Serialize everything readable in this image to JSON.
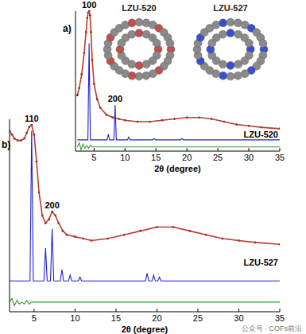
{
  "chart_data": [
    {
      "type": "line",
      "panel_label": "a)",
      "sample_label": "LZU-520",
      "x_label": "2θ (degree)",
      "xlim": [
        2,
        35
      ],
      "xticks": [
        5,
        10,
        15,
        20,
        25,
        30,
        35
      ],
      "ylim": [
        0,
        100
      ],
      "tick_labels": "x",
      "annotations": [
        {
          "text": "100",
          "x": 4.2,
          "y": 100
        },
        {
          "text": "200",
          "x": 8.4,
          "y": 33
        }
      ],
      "series": [
        {
          "color": "#000000",
          "marker": "circle",
          "line_style": "none",
          "x": [
            2.3,
            2.6,
            3.0,
            3.4,
            3.7,
            3.9,
            4.05,
            4.2,
            4.35,
            4.5,
            4.7,
            5.0,
            5.5,
            6,
            7,
            8,
            9,
            10,
            12,
            14,
            16,
            18,
            20,
            22,
            24,
            26,
            28,
            30,
            32,
            35
          ],
          "values": [
            40,
            45,
            55,
            70,
            85,
            95,
            99,
            100,
            97,
            85,
            65,
            48,
            37,
            31,
            26,
            24,
            23,
            22,
            21,
            21,
            22,
            23,
            24,
            24,
            23,
            21,
            19,
            18,
            17,
            16
          ]
        },
        {
          "color": "#c0392b",
          "line_style": "solid",
          "x": [
            2.3,
            2.6,
            3.0,
            3.4,
            3.7,
            3.9,
            4.05,
            4.2,
            4.35,
            4.5,
            4.7,
            5.0,
            5.5,
            6,
            7,
            8,
            9,
            10,
            12,
            14,
            16,
            18,
            20,
            22,
            24,
            26,
            28,
            30,
            32,
            35
          ],
          "values": [
            40,
            45,
            55,
            70,
            85,
            95,
            99,
            100,
            97,
            85,
            65,
            48,
            37,
            31,
            26,
            24,
            23,
            22,
            21,
            21,
            22,
            23,
            24,
            24,
            23,
            21,
            19,
            18,
            17,
            16
          ]
        },
        {
          "color": "#1f1fd6",
          "line_style": "solid",
          "x": [
            2.3,
            4.0,
            4.2,
            4.4,
            7.1,
            7.3,
            7.5,
            8.2,
            8.4,
            8.6,
            10.4,
            10.6,
            10.8,
            14.5,
            14.7,
            14.9,
            19.0,
            19.2,
            19.4,
            35
          ],
          "values": [
            8,
            8,
            77,
            8,
            8,
            12,
            8,
            8,
            33,
            8,
            8,
            10,
            8,
            8,
            9,
            8,
            8,
            9,
            8,
            8
          ]
        },
        {
          "color": "#2e9e2e",
          "line_style": "solid",
          "x": [
            2.3,
            2.6,
            2.9,
            3.2,
            3.5,
            3.8,
            4.1,
            4.4,
            4.7,
            5.0,
            5.5,
            6,
            8,
            35
          ],
          "values": [
            3,
            6,
            1,
            5,
            2,
            4,
            2,
            4,
            3,
            3,
            3,
            3,
            3,
            3
          ]
        }
      ]
    },
    {
      "type": "line",
      "panel_label": "b)",
      "sample_label": "LZU-527",
      "x_label": "2θ (degree)",
      "xlim": [
        2,
        35
      ],
      "xticks": [
        5,
        10,
        15,
        20,
        25,
        30,
        35
      ],
      "ylim": [
        0,
        100
      ],
      "tick_labels": "x",
      "annotations": [
        {
          "text": "110",
          "x": 4.7,
          "y": 97
        },
        {
          "text": "200",
          "x": 7.2,
          "y": 52
        }
      ],
      "series": [
        {
          "color": "#000000",
          "marker": "circle",
          "line_style": "none",
          "x": [
            2.0,
            2.3,
            2.6,
            3.0,
            3.4,
            3.8,
            4.1,
            4.4,
            4.7,
            5.0,
            5.3,
            5.6,
            6.0,
            6.4,
            6.8,
            7.2,
            7.6,
            8.0,
            8.5,
            9,
            10,
            11,
            12,
            14,
            16,
            18,
            20,
            22,
            24,
            26,
            28,
            30,
            32,
            35
          ],
          "values": [
            94,
            92,
            90,
            89,
            89,
            90,
            93,
            96,
            97,
            92,
            78,
            62,
            50,
            46,
            48,
            52,
            50,
            46,
            42,
            40,
            39,
            38,
            37,
            38,
            40,
            42,
            44,
            44,
            42,
            40,
            38,
            37,
            36,
            35
          ]
        },
        {
          "color": "#c0392b",
          "line_style": "solid",
          "x": [
            2.0,
            2.3,
            2.6,
            3.0,
            3.4,
            3.8,
            4.1,
            4.4,
            4.7,
            5.0,
            5.3,
            5.6,
            6.0,
            6.4,
            6.8,
            7.2,
            7.6,
            8.0,
            8.5,
            9,
            10,
            11,
            12,
            14,
            16,
            18,
            20,
            22,
            24,
            26,
            28,
            30,
            32,
            35
          ],
          "values": [
            94,
            92,
            90,
            89,
            89,
            90,
            93,
            96,
            97,
            92,
            78,
            62,
            50,
            46,
            48,
            52,
            50,
            46,
            42,
            40,
            39,
            38,
            37,
            38,
            40,
            42,
            44,
            44,
            42,
            40,
            38,
            37,
            36,
            35
          ]
        },
        {
          "color": "#1f1fd6",
          "line_style": "solid",
          "x": [
            2.0,
            4.5,
            4.7,
            4.9,
            6.2,
            6.4,
            6.6,
            7.0,
            7.2,
            7.4,
            8.2,
            8.4,
            8.6,
            9.2,
            9.4,
            9.6,
            10.4,
            10.6,
            10.8,
            18.6,
            18.8,
            19.0,
            19.4,
            19.6,
            19.8,
            20.1,
            20.3,
            20.5,
            35
          ],
          "values": [
            16,
            16,
            94,
            16,
            16,
            33,
            16,
            16,
            43,
            16,
            16,
            22,
            16,
            16,
            19,
            16,
            16,
            18,
            16,
            16,
            20,
            16,
            16,
            19,
            16,
            16,
            18,
            16,
            16
          ]
        },
        {
          "color": "#2e9e2e",
          "line_style": "solid",
          "x": [
            2.0,
            2.3,
            2.6,
            2.9,
            3.2,
            3.5,
            3.8,
            4.1,
            4.4,
            4.7,
            5.0,
            5.5,
            6,
            8,
            35
          ],
          "values": [
            5,
            7,
            3,
            6,
            4,
            5,
            4,
            6,
            4,
            5,
            5,
            5,
            5,
            5,
            5
          ]
        }
      ]
    }
  ],
  "insets": [
    {
      "label": "LZU-520"
    },
    {
      "label": "LZU-527"
    }
  ],
  "watermark": "公众号 · COFs前沿"
}
